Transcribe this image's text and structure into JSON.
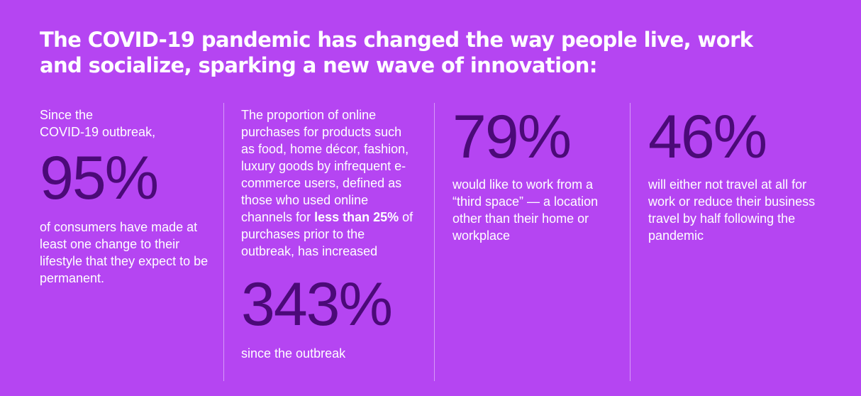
{
  "headline": {
    "line1": "The COVID-19 pandemic has changed the way people live, work",
    "line2": "and socialize, sparking a new wave of innovation:"
  },
  "stat1": {
    "intro_line1": "Since the",
    "intro_line2": "COVID-19 outbreak,",
    "value": "95%",
    "description": "of consumers have made at least one change to their lifestyle that they expect to be permanent."
  },
  "stat2": {
    "description_before": "The proportion of online purchases for products such as food, home décor, fashion, luxury goods by infrequent e-commerce users, defined as those who used online channels for ",
    "description_bold": "less than 25%",
    "description_after": " of purchases prior to the outbreak, has increased",
    "value": "343%",
    "caption": "since the outbreak"
  },
  "stat3": {
    "value": "79%",
    "description": "would like to work from a “third space” — a location other than their home or workplace"
  },
  "stat4": {
    "value": "46%",
    "description": "will either not travel at all for work or reduce their business travel by half following the pandemic"
  },
  "colors": {
    "background": "#b545f2",
    "number": "#4b0a78",
    "text": "#ffffff"
  }
}
